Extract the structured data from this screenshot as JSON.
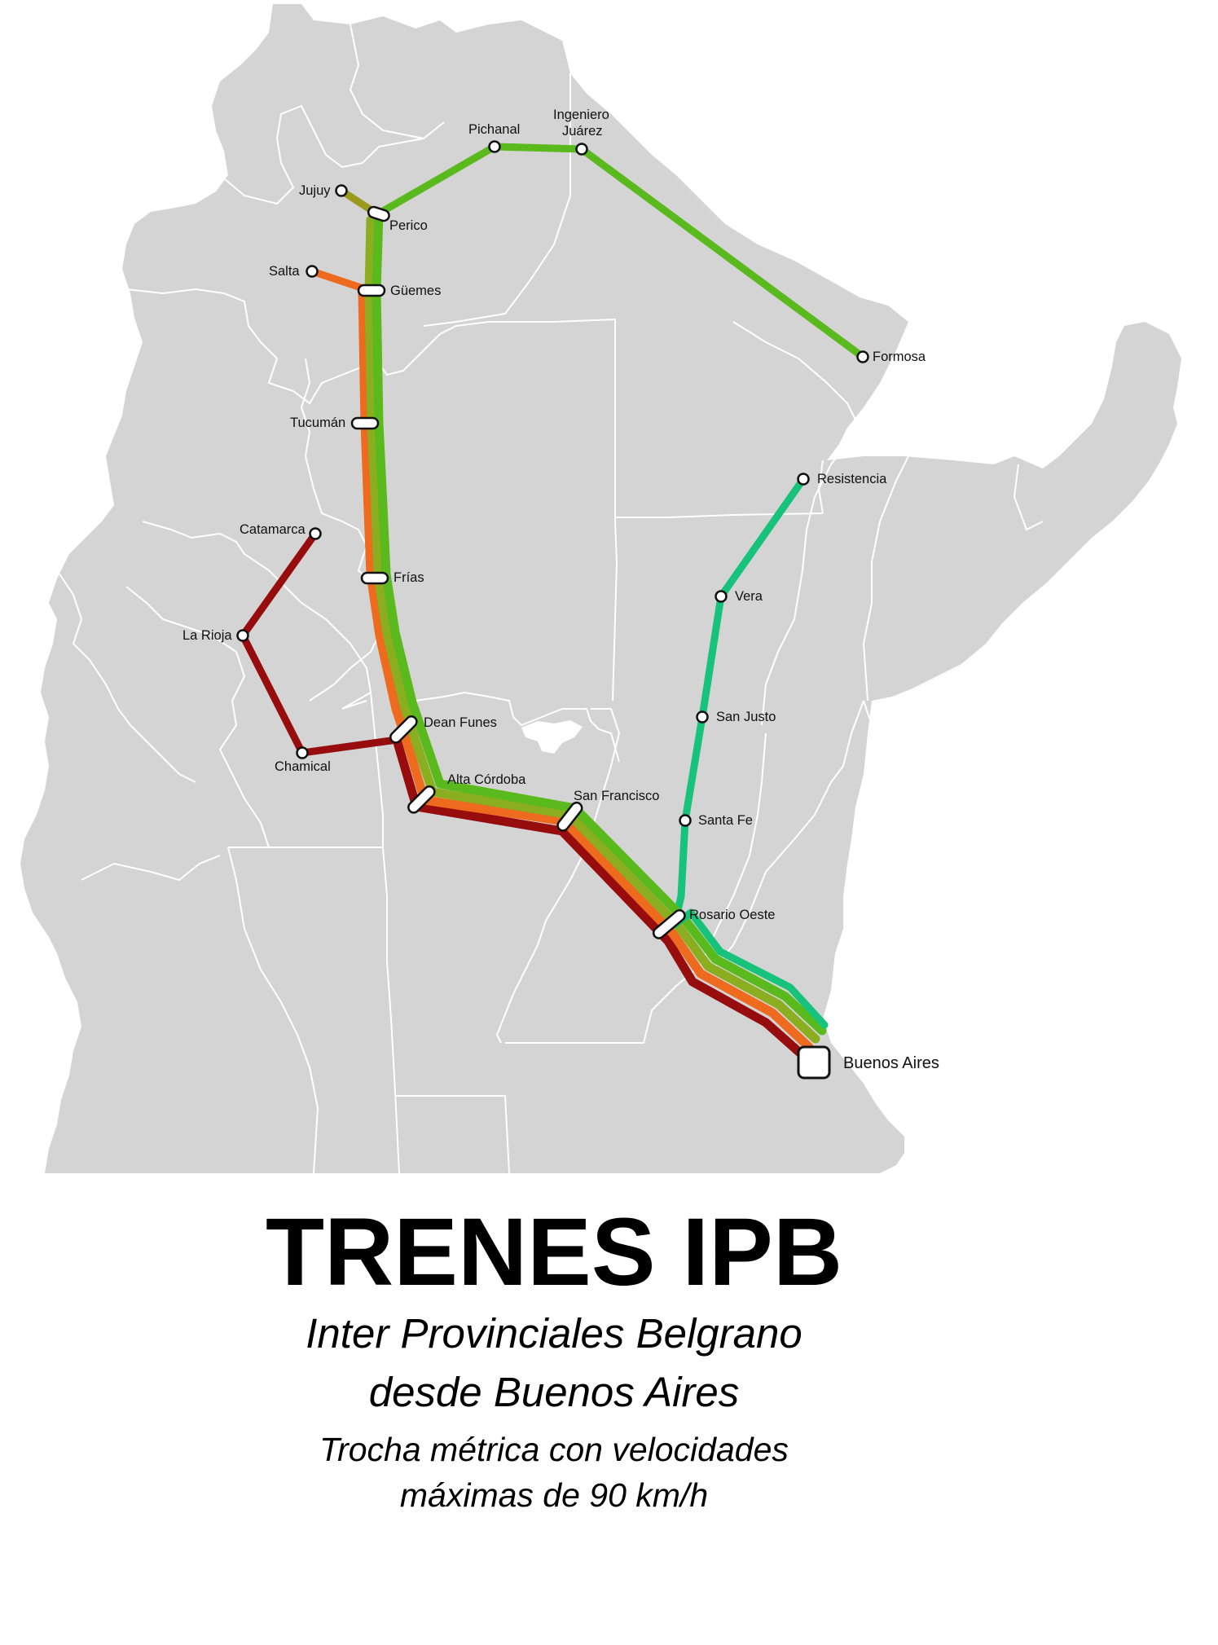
{
  "map": {
    "land_color": "#d4d4d4",
    "border_color": "#ffffff",
    "line_colors": {
      "jujuy": "#9a9a1e",
      "salta": "#ee6a1e",
      "catamarca": "#970d0d",
      "formosa": "#5ab91c",
      "resistencia": "#17c27a"
    }
  },
  "stations": [
    {
      "id": "pichanal",
      "label": "Pichanal"
    },
    {
      "id": "ingeniero-juarez",
      "label": "Ingeniero",
      "label2": "Juárez"
    },
    {
      "id": "jujuy",
      "label": "Jujuy"
    },
    {
      "id": "perico",
      "label": "Perico"
    },
    {
      "id": "salta",
      "label": "Salta"
    },
    {
      "id": "guemes",
      "label": "Güemes"
    },
    {
      "id": "formosa",
      "label": "Formosa"
    },
    {
      "id": "tucuman",
      "label": "Tucumán"
    },
    {
      "id": "resistencia",
      "label": "Resistencia"
    },
    {
      "id": "catamarca",
      "label": "Catamarca"
    },
    {
      "id": "frias",
      "label": "Frías"
    },
    {
      "id": "vera",
      "label": "Vera"
    },
    {
      "id": "la-rioja",
      "label": "La Rioja"
    },
    {
      "id": "san-justo",
      "label": "San Justo"
    },
    {
      "id": "dean-funes",
      "label": "Dean Funes"
    },
    {
      "id": "chamical",
      "label": "Chamical"
    },
    {
      "id": "alta-cordoba",
      "label": "Alta Córdoba"
    },
    {
      "id": "san-francisco",
      "label": "San Francisco"
    },
    {
      "id": "santa-fe",
      "label": "Santa Fe"
    },
    {
      "id": "rosario-oeste",
      "label": "Rosario Oeste"
    },
    {
      "id": "buenos-aires",
      "label": "Buenos Aires"
    }
  ],
  "titles": {
    "main": "TRENES IPB",
    "subtitle_line1": "Inter Provinciales Belgrano",
    "subtitle_line2": "desde Buenos Aires",
    "note_line1": "Trocha métrica con velocidades",
    "note_line2": "máximas de 90 km/h"
  }
}
